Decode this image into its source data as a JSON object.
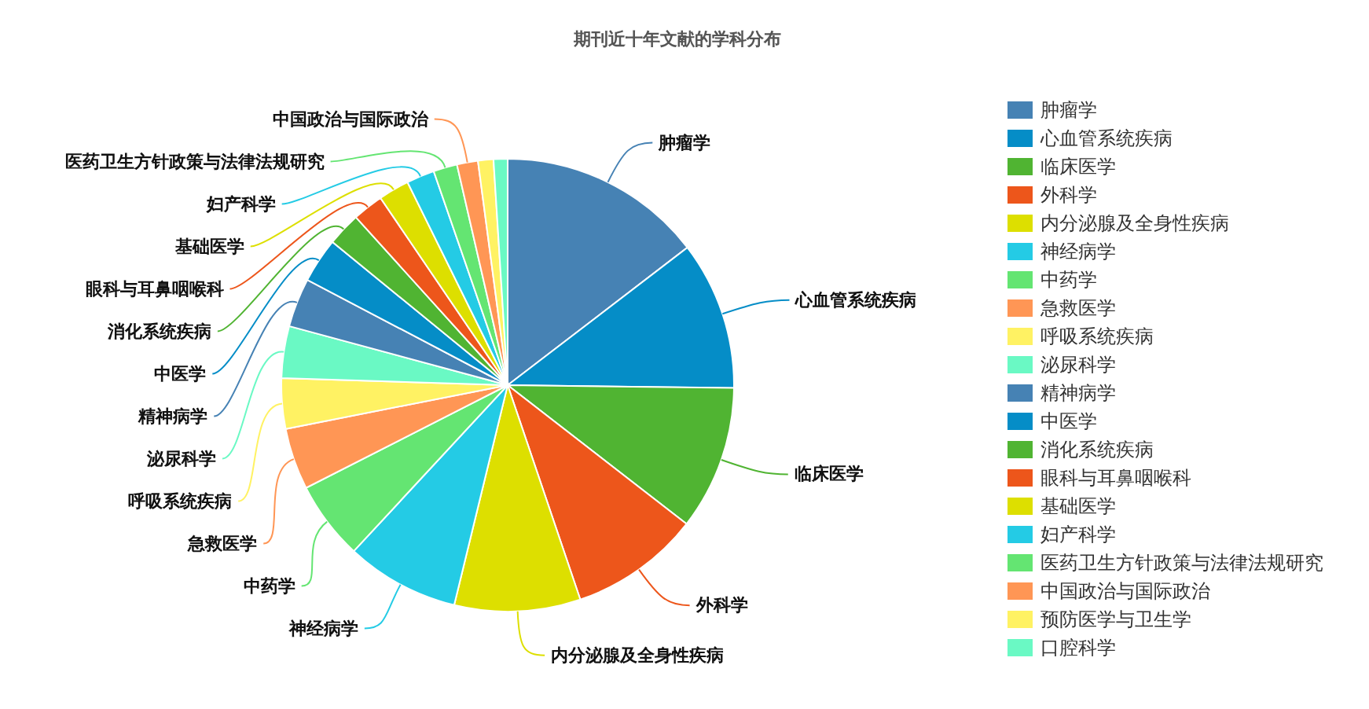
{
  "chart_data": {
    "type": "pie",
    "title": "期刊近十年文献的学科分布",
    "categories": [
      "肿瘤学",
      "心血管系统疾病",
      "临床医学",
      "外科学",
      "内分泌腺及全身性疾病",
      "神经病学",
      "中药学",
      "急救医学",
      "呼吸系统疾病",
      "泌尿科学",
      "精神病学",
      "中医学",
      "消化系统疾病",
      "眼科与耳鼻咽喉科",
      "基础医学",
      "妇产科学",
      "医药卫生方针政策与法律法规研究",
      "中国政治与国际政治",
      "预防医学与卫生学",
      "口腔科学"
    ],
    "values": [
      14.6,
      10.6,
      10.3,
      9.3,
      9.0,
      8.1,
      5.6,
      4.4,
      3.6,
      3.7,
      3.5,
      3.2,
      2.4,
      2.2,
      2.2,
      2.0,
      1.7,
      1.5,
      1.1,
      1.0
    ],
    "colors": [
      "#4682b4",
      "#058dc7",
      "#50b432",
      "#ed561b",
      "#dddf00",
      "#24cbe5",
      "#64e572",
      "#ff9655",
      "#fff263",
      "#6af9c4",
      "#4682b4",
      "#058dc7",
      "#50b432",
      "#ed561b",
      "#dddf00",
      "#24cbe5",
      "#64e572",
      "#ff9655",
      "#fff263",
      "#6af9c4"
    ],
    "legend": "right"
  }
}
